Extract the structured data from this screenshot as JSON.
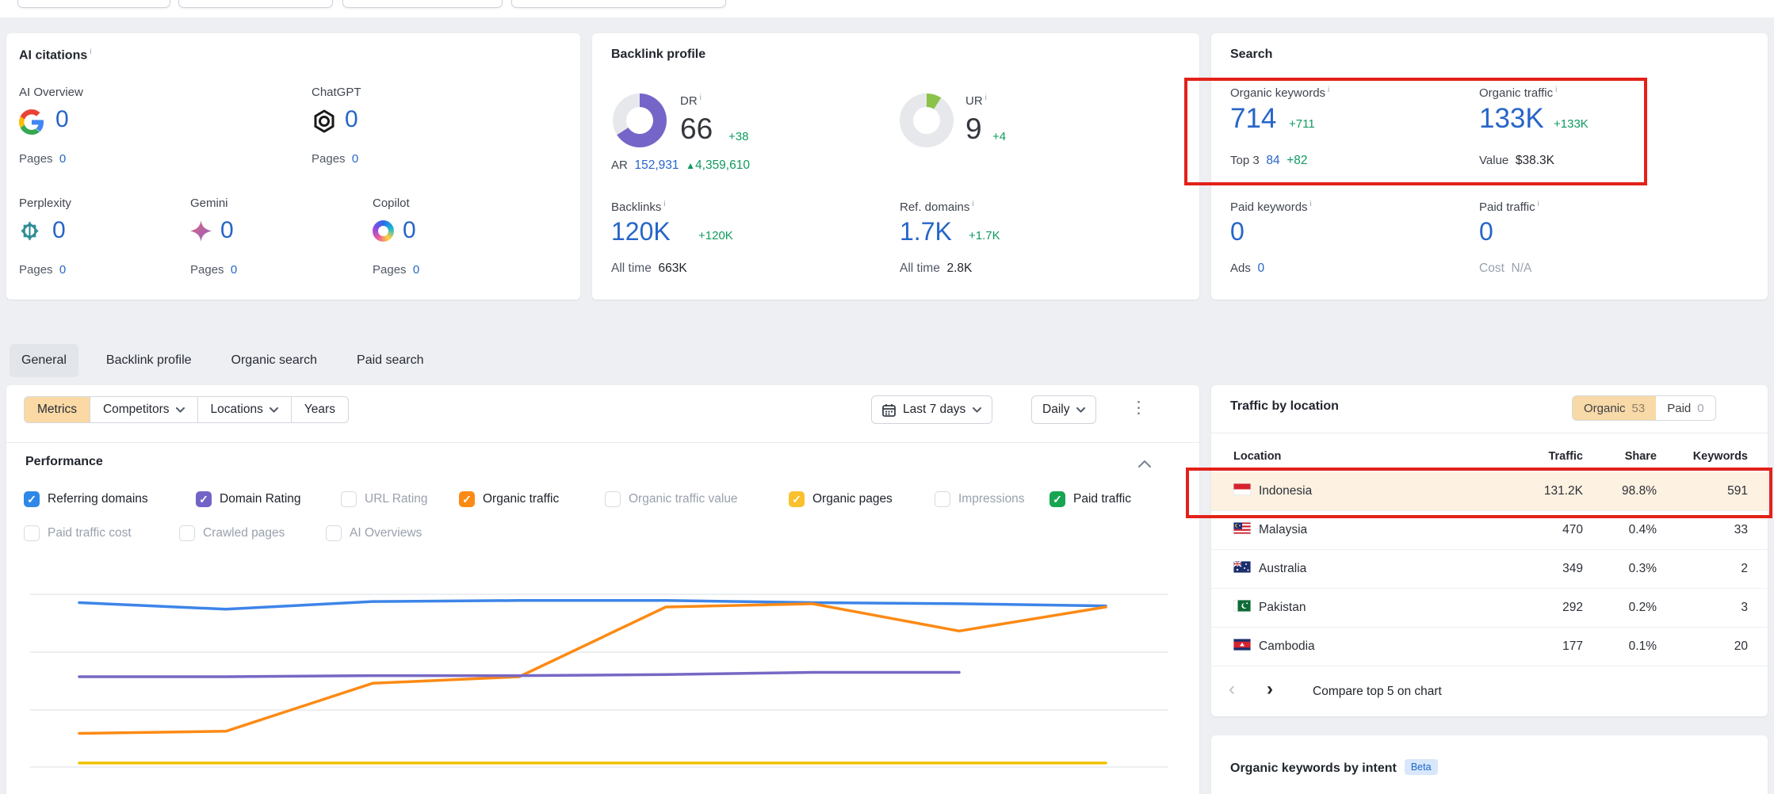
{
  "colors": {
    "accent_tan": "#fbd9a4",
    "annotation_red": "#e32119",
    "link_blue": "#2765c8",
    "delta_green": "#0f9a5f",
    "dr_donut": "#7665c8",
    "ur_donut": "#8ac24a"
  },
  "ai_citations": {
    "title": "AI citations",
    "items": [
      {
        "label": "AI Overview",
        "icon": "google-icon",
        "value": "0",
        "pages_label": "Pages",
        "pages_value": "0"
      },
      {
        "label": "ChatGPT",
        "icon": "openai-icon",
        "value": "0",
        "pages_label": "Pages",
        "pages_value": "0"
      },
      {
        "label": "Perplexity",
        "icon": "perplexity-icon",
        "value": "0",
        "pages_label": "Pages",
        "pages_value": "0"
      },
      {
        "label": "Gemini",
        "icon": "gemini-icon",
        "value": "0",
        "pages_label": "Pages",
        "pages_value": "0"
      },
      {
        "label": "Copilot",
        "icon": "copilot-icon",
        "value": "0",
        "pages_label": "Pages",
        "pages_value": "0"
      }
    ]
  },
  "backlink_profile": {
    "title": "Backlink profile",
    "dr": {
      "label": "DR",
      "value": "66",
      "delta": "+38",
      "percent": 66
    },
    "ar": {
      "label": "AR",
      "value": "152,931",
      "delta": "4,359,610"
    },
    "ur": {
      "label": "UR",
      "value": "9",
      "delta": "+4",
      "percent": 9
    },
    "backlinks": {
      "label": "Backlinks",
      "value": "120K",
      "delta": "+120K",
      "alltime_label": "All time",
      "alltime_value": "663K"
    },
    "ref_domains": {
      "label": "Ref. domains",
      "value": "1.7K",
      "delta": "+1.7K",
      "alltime_label": "All time",
      "alltime_value": "2.8K"
    }
  },
  "search": {
    "title": "Search",
    "organic_keywords": {
      "label": "Organic keywords",
      "value": "714",
      "delta": "+711",
      "sub_label": "Top 3",
      "sub_value": "84",
      "sub_delta": "+82"
    },
    "organic_traffic": {
      "label": "Organic traffic",
      "value": "133K",
      "delta": "+133K",
      "sub_label": "Value",
      "sub_value": "$38.3K"
    },
    "paid_keywords": {
      "label": "Paid keywords",
      "value": "0",
      "sub_label": "Ads",
      "sub_value": "0"
    },
    "paid_traffic": {
      "label": "Paid traffic",
      "value": "0",
      "sub_label": "Cost",
      "sub_value": "N/A"
    }
  },
  "tabs": {
    "items": [
      {
        "label": "General",
        "active": true
      },
      {
        "label": "Backlink profile",
        "active": false
      },
      {
        "label": "Organic search",
        "active": false
      },
      {
        "label": "Paid search",
        "active": false
      }
    ]
  },
  "filters": {
    "segments": [
      {
        "label": "Metrics",
        "active": true,
        "has_chevron": false
      },
      {
        "label": "Competitors",
        "active": false,
        "has_chevron": true
      },
      {
        "label": "Locations",
        "active": false,
        "has_chevron": true
      },
      {
        "label": "Years",
        "active": false,
        "has_chevron": false
      }
    ],
    "date_range": "Last 7 days",
    "granularity": "Daily"
  },
  "performance": {
    "title": "Performance",
    "checkboxes": [
      {
        "label": "Referring domains",
        "checked": true,
        "color": "#2f88e8"
      },
      {
        "label": "Domain Rating",
        "checked": true,
        "color": "#7263c7"
      },
      {
        "label": "URL Rating",
        "checked": false,
        "color": null
      },
      {
        "label": "Organic traffic",
        "checked": true,
        "color": "#fb8a14"
      },
      {
        "label": "Organic traffic value",
        "checked": false,
        "color": null
      },
      {
        "label": "Organic pages",
        "checked": true,
        "color": "#fbc02d"
      },
      {
        "label": "Impressions",
        "checked": false,
        "color": null
      },
      {
        "label": "Paid traffic",
        "checked": true,
        "color": "#17a551"
      },
      {
        "label": "Paid traffic cost",
        "checked": false,
        "color": null
      },
      {
        "label": "Crawled pages",
        "checked": false,
        "color": null
      },
      {
        "label": "AI Overviews",
        "checked": false,
        "color": null
      }
    ]
  },
  "chart_data": {
    "type": "line",
    "x": [
      1,
      2,
      3,
      4,
      5,
      6,
      7,
      8
    ],
    "x_note": "8 daily points over Last 7 days; x tick labels cut off below screenshot edge",
    "ylabel": "",
    "y_note": "y axis unlabeled; values are estimated % of plot height (0 = bottom gridline area, 100 = top)",
    "ylim": [
      0,
      100
    ],
    "grid": "horizontal gridlines only",
    "legend_position": "checkbox row above chart",
    "series": [
      {
        "name": "Referring domains",
        "color": "#3d85e8",
        "values": [
          78,
          75,
          78.5,
          79,
          79,
          78,
          77.5,
          76.5
        ]
      },
      {
        "name": "Organic traffic",
        "color": "#fc8a15",
        "values": [
          18,
          19,
          41,
          44,
          76,
          77.5,
          65,
          76
        ]
      },
      {
        "name": "Domain Rating",
        "color": "#7668c5",
        "values": [
          44,
          44,
          44.5,
          44.5,
          45,
          46,
          46,
          null
        ]
      },
      {
        "name": "Organic pages",
        "color": "#efc100",
        "values": [
          4.4,
          4.4,
          4.4,
          4.4,
          4.4,
          4.4,
          4.4,
          4.4
        ]
      }
    ]
  },
  "traffic_by_location": {
    "title": "Traffic by location",
    "toggle": [
      {
        "label": "Organic",
        "count": "53",
        "active": true
      },
      {
        "label": "Paid",
        "count": "0",
        "active": false
      }
    ],
    "columns": {
      "location": "Location",
      "traffic": "Traffic",
      "share": "Share",
      "keywords": "Keywords"
    },
    "rows": [
      {
        "location": "Indonesia",
        "traffic": "131.2K",
        "share": "98.8%",
        "keywords": "591",
        "highlighted": true
      },
      {
        "location": "Malaysia",
        "traffic": "470",
        "share": "0.4%",
        "keywords": "33",
        "highlighted": false
      },
      {
        "location": "Australia",
        "traffic": "349",
        "share": "0.3%",
        "keywords": "2",
        "highlighted": false
      },
      {
        "location": "Pakistan",
        "traffic": "292",
        "share": "0.2%",
        "keywords": "3",
        "highlighted": false
      },
      {
        "location": "Cambodia",
        "traffic": "177",
        "share": "0.1%",
        "keywords": "20",
        "highlighted": false
      }
    ],
    "compare_label": "Compare top 5 on chart"
  },
  "intent_card": {
    "title": "Organic keywords by intent",
    "badge": "Beta"
  }
}
